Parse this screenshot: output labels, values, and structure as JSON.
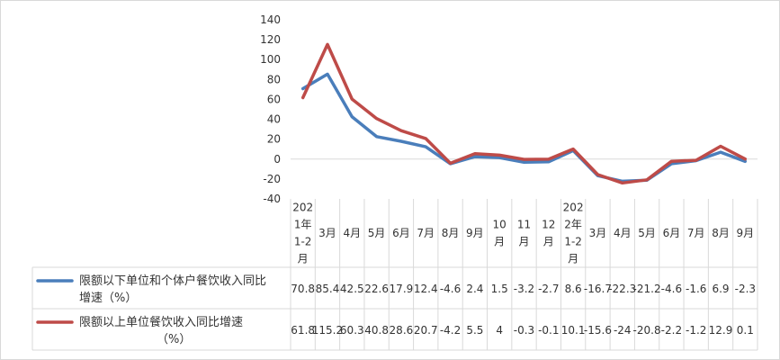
{
  "chart_data": {
    "type": "line",
    "title": "",
    "xlabel": "",
    "ylabel": "",
    "ylim": [
      -40,
      140
    ],
    "yticks": [
      140,
      120,
      100,
      80,
      60,
      40,
      20,
      0,
      -20,
      -40
    ],
    "grid": false,
    "legend": "data-table-left",
    "categories": [
      [
        "202",
        "1年",
        "1-2",
        "月"
      ],
      [
        "3月"
      ],
      [
        "4月"
      ],
      [
        "5月"
      ],
      [
        "6月"
      ],
      [
        "7月"
      ],
      [
        "8月"
      ],
      [
        "9月"
      ],
      [
        "10",
        "月"
      ],
      [
        "11",
        "月"
      ],
      [
        "12",
        "月"
      ],
      [
        "202",
        "2年",
        "1-2",
        "月"
      ],
      [
        "3月"
      ],
      [
        "4月"
      ],
      [
        "5月"
      ],
      [
        "6月"
      ],
      [
        "7月"
      ],
      [
        "8月"
      ],
      [
        "9月"
      ]
    ],
    "series": [
      {
        "name_lines": [
          "限额以下单位和个体户餐饮收入同比",
          "增速（%）"
        ],
        "color": "#4a7ebb",
        "values": [
          70.8,
          85.4,
          42.5,
          22.6,
          17.9,
          12.4,
          -4.6,
          2.4,
          1.5,
          -3.2,
          -2.7,
          8.6,
          -16.7,
          -22.3,
          -21.2,
          -4.6,
          -1.6,
          6.9,
          -2.3
        ],
        "labels": [
          "70.8",
          "85.4",
          "42.5",
          "22.6",
          "17.9",
          "12.4",
          "-4.6",
          "2.4",
          "1.5",
          "-3.2",
          "-2.7",
          "8.6",
          "-16.7",
          "-22.3",
          "-21.2",
          "-4.6",
          "-1.6",
          "6.9",
          "-2.3"
        ]
      },
      {
        "name_lines": [
          "限额以上单位餐饮收入同比增速",
          "（%）"
        ],
        "color": "#be4b48",
        "values": [
          61.8,
          115.2,
          60.3,
          40.8,
          28.6,
          20.7,
          -4.2,
          5.5,
          4,
          -0.3,
          -0.1,
          10.1,
          -15.6,
          -24,
          -20.8,
          -2.2,
          -1.2,
          12.9,
          0.1
        ],
        "labels": [
          "61.8",
          "115.2",
          "60.3",
          "40.8",
          "28.6",
          "20.7",
          "-4.2",
          "5.5",
          "4",
          "-0.3",
          "-0.1",
          "10.1",
          "-15.6",
          "-24",
          "-20.8",
          "-2.2",
          "-1.2",
          "12.9",
          "0.1"
        ]
      }
    ]
  }
}
